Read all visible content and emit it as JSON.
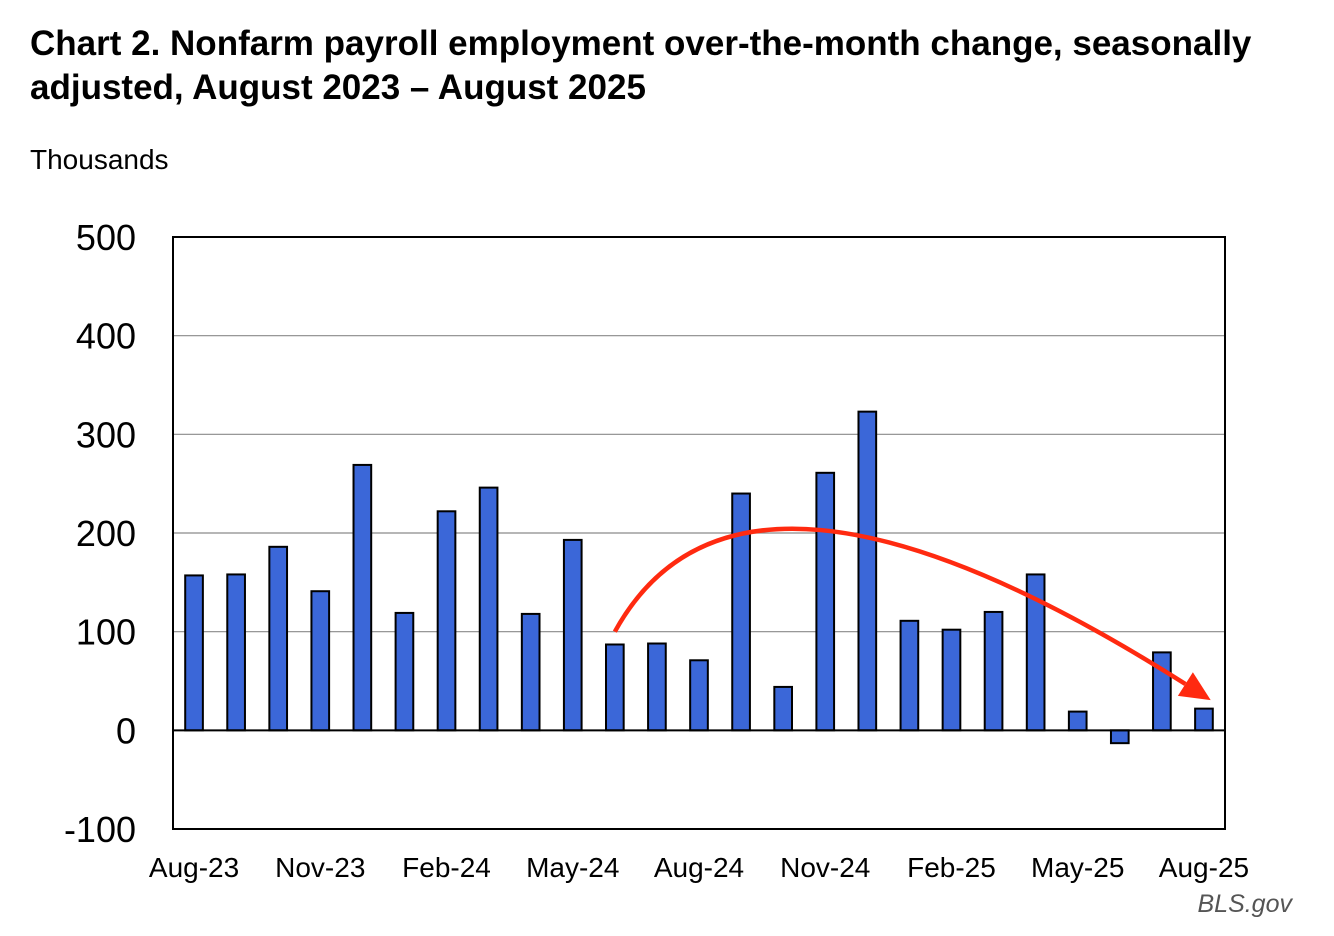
{
  "chart_data": {
    "type": "bar",
    "title": "Chart 2. Nonfarm payroll employment over-the-month change, seasonally adjusted, August 2023 – August 2025",
    "unit_label": "Thousands",
    "source": "BLS.gov",
    "xlabel": "",
    "ylabel": "",
    "ylim": [
      -100,
      500
    ],
    "yticks": [
      "-100",
      "0",
      "100",
      "200",
      "300",
      "400",
      "500"
    ],
    "ytick_values": [
      -100,
      0,
      100,
      200,
      300,
      400,
      500
    ],
    "xtick_labels": [
      "Aug-23",
      "Nov-23",
      "Feb-24",
      "May-24",
      "Aug-24",
      "Nov-24",
      "Feb-25",
      "May-25",
      "Aug-25"
    ],
    "xtick_index": [
      0,
      3,
      6,
      9,
      12,
      15,
      18,
      21,
      24
    ],
    "grid": true,
    "categories": [
      "Aug-23",
      "Sep-23",
      "Oct-23",
      "Nov-23",
      "Dec-23",
      "Jan-24",
      "Feb-24",
      "Mar-24",
      "Apr-24",
      "May-24",
      "Jun-24",
      "Jul-24",
      "Aug-24",
      "Sep-24",
      "Oct-24",
      "Nov-24",
      "Dec-24",
      "Jan-25",
      "Feb-25",
      "Mar-25",
      "Apr-25",
      "May-25",
      "Jun-25",
      "Jul-25",
      "Aug-25"
    ],
    "values": [
      157,
      158,
      186,
      141,
      269,
      119,
      222,
      246,
      118,
      193,
      87,
      88,
      71,
      240,
      44,
      261,
      323,
      111,
      102,
      120,
      158,
      19,
      -13,
      79,
      22
    ],
    "bar_color": "#3B67D8",
    "annotation": {
      "type": "trend-arrow",
      "color": "#FF2A10",
      "points": [
        {
          "x": "Jun-24",
          "y": 100
        },
        {
          "x": "Nov-24",
          "y": 200
        },
        {
          "x": "Aug-25",
          "y": 35
        }
      ]
    }
  }
}
